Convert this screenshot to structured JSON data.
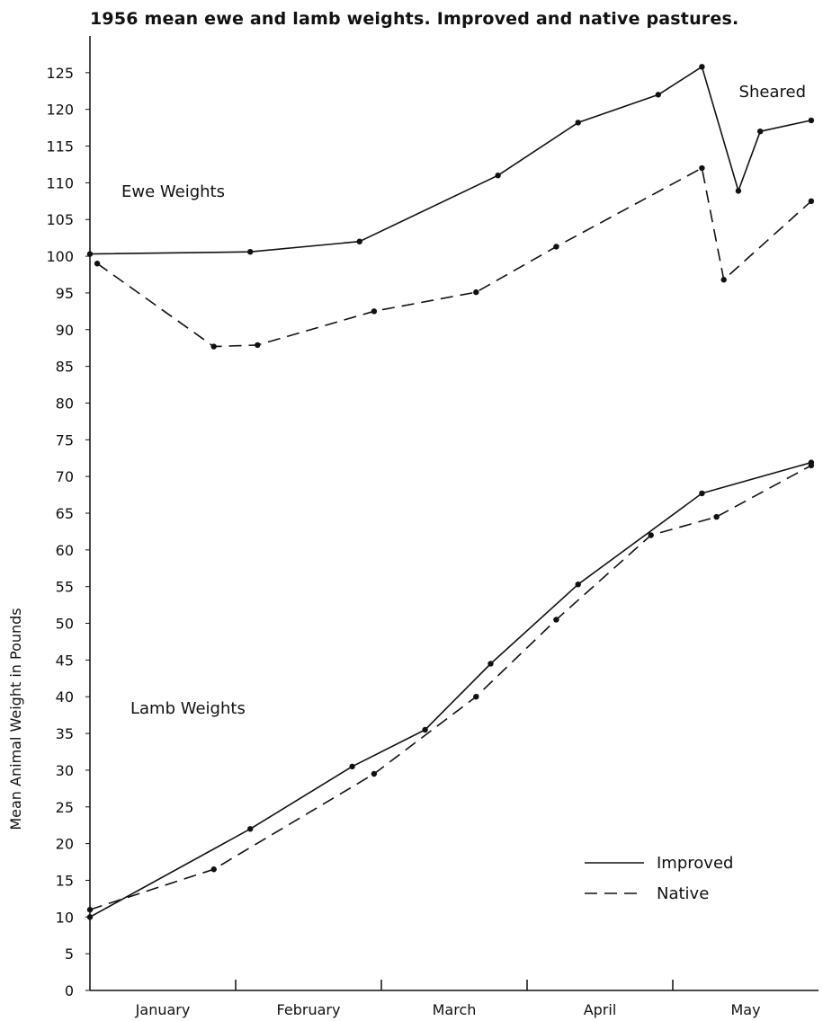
{
  "chart_data": {
    "type": "line",
    "title": "1956 mean ewe and lamb weights. Improved and native pastures.",
    "ylabel": "Mean Animal Weight in Pounds",
    "xlabel": "",
    "month_labels": [
      "January",
      "February",
      "March",
      "April",
      "May"
    ],
    "y_ticks": [
      0,
      5,
      10,
      15,
      20,
      25,
      30,
      35,
      40,
      45,
      50,
      55,
      60,
      65,
      70,
      75,
      80,
      85,
      90,
      95,
      100,
      105,
      110,
      115,
      120,
      125
    ],
    "ylim": [
      0,
      130
    ],
    "x_scale": "months (0 = start of January, 5 = end of May)",
    "annotations": [
      "Ewe Weights",
      "Lamb Weights",
      "Sheared"
    ],
    "legend": {
      "position": "bottom-right",
      "entries": [
        "Improved",
        "Native"
      ]
    },
    "series": [
      {
        "name": "Improved",
        "group": "ewe",
        "style": "solid",
        "points": [
          [
            0.0,
            100.3
          ],
          [
            1.1,
            100.6
          ],
          [
            1.85,
            102.0
          ],
          [
            2.8,
            111.0
          ],
          [
            3.35,
            118.2
          ],
          [
            3.9,
            122.0
          ],
          [
            4.2,
            125.8
          ],
          [
            4.45,
            108.9
          ],
          [
            4.6,
            117.0
          ],
          [
            4.95,
            118.5
          ]
        ]
      },
      {
        "name": "Native",
        "group": "ewe",
        "style": "dashed",
        "points": [
          [
            0.05,
            99.0
          ],
          [
            0.85,
            87.7
          ],
          [
            1.15,
            87.9
          ],
          [
            1.95,
            92.5
          ],
          [
            2.65,
            95.1
          ],
          [
            3.2,
            101.3
          ],
          [
            4.2,
            112.0
          ],
          [
            4.35,
            96.8
          ],
          [
            4.95,
            107.5
          ]
        ]
      },
      {
        "name": "Improved",
        "group": "lamb",
        "style": "solid",
        "points": [
          [
            0.0,
            10.0
          ],
          [
            1.1,
            22.0
          ],
          [
            1.8,
            30.5
          ],
          [
            2.3,
            35.5
          ],
          [
            2.75,
            44.5
          ],
          [
            3.35,
            55.3
          ],
          [
            4.2,
            67.7
          ],
          [
            4.95,
            71.9
          ]
        ]
      },
      {
        "name": "Native",
        "group": "lamb",
        "style": "dashed",
        "points": [
          [
            0.0,
            11.0
          ],
          [
            0.85,
            16.5
          ],
          [
            1.95,
            29.5
          ],
          [
            2.65,
            40.0
          ],
          [
            3.2,
            50.5
          ],
          [
            3.85,
            62.0
          ],
          [
            4.3,
            64.5
          ],
          [
            4.95,
            71.5
          ]
        ]
      }
    ]
  }
}
